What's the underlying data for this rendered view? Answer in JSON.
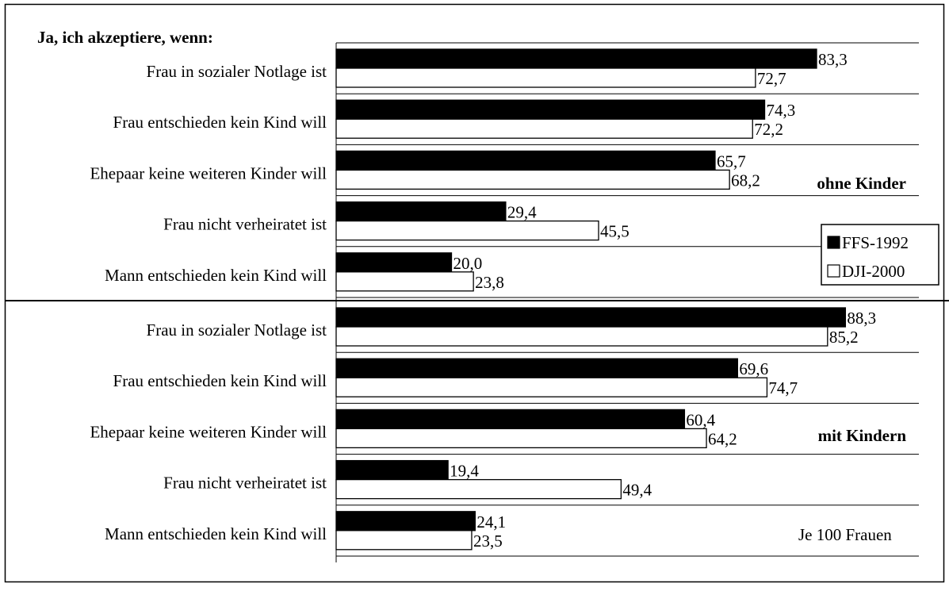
{
  "chart_data": {
    "type": "bar",
    "orientation": "horizontal",
    "heading": "Ja, ich akzeptiere, wenn:",
    "unit_note": "Je 100 Frauen",
    "xlim": [
      0,
      100
    ],
    "grid": "horizontal separators between categories",
    "legend": {
      "placement": "right, between groups",
      "entries": [
        "FFS-1992",
        "DJI-2000"
      ]
    },
    "colors": {
      "FFS-1992": "#000000",
      "DJI-2000": "#ffffff",
      "border": "#000000"
    },
    "groups": [
      {
        "label": "ohne Kinder",
        "categories": [
          "Frau in sozialer Notlage ist",
          "Frau entschieden kein Kind will",
          "Ehepaar keine weiteren Kinder will",
          "Frau nicht verheiratet ist",
          "Mann entschieden kein Kind will"
        ],
        "series": [
          {
            "name": "FFS-1992",
            "values": [
              83.3,
              74.3,
              65.7,
              29.4,
              20.0
            ],
            "labels": [
              "83,3",
              "74,3",
              "65,7",
              "29,4",
              "20,0"
            ]
          },
          {
            "name": "DJI-2000",
            "values": [
              72.7,
              72.2,
              68.2,
              45.5,
              23.8
            ],
            "labels": [
              "72,7",
              "72,2",
              "68,2",
              "45,5",
              "23,8"
            ]
          }
        ]
      },
      {
        "label": "mit Kindern",
        "categories": [
          "Frau in sozialer Notlage ist",
          "Frau entschieden kein Kind will",
          "Ehepaar keine weiteren Kinder will",
          "Frau nicht verheiratet ist",
          "Mann entschieden kein Kind will"
        ],
        "series": [
          {
            "name": "FFS-1992",
            "values": [
              88.3,
              69.6,
              60.4,
              19.4,
              24.1
            ],
            "labels": [
              "88,3",
              "69,6",
              "60,4",
              "19,4",
              "24,1"
            ]
          },
          {
            "name": "DJI-2000",
            "values": [
              85.2,
              74.7,
              64.2,
              49.4,
              23.5
            ],
            "labels": [
              "85,2",
              "74,7",
              "64,2",
              "49,4",
              "23,5"
            ]
          }
        ]
      }
    ]
  }
}
